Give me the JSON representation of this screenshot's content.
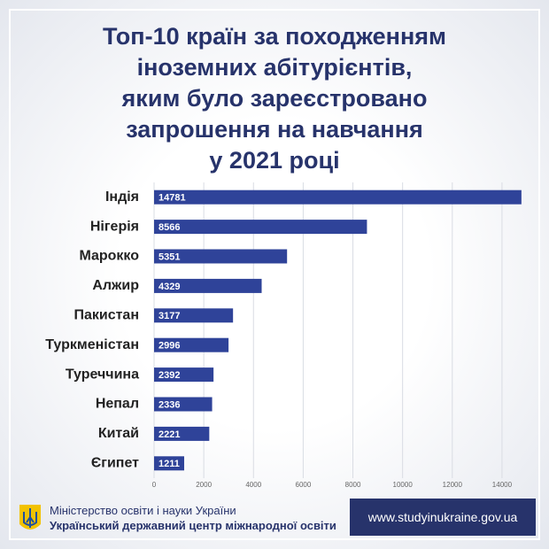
{
  "chart_data": {
    "type": "barh",
    "title": "Топ-10 країн за походженням\nіноземних абітурієнтів,\nяким було зареєстровано\nзапрошення на навчання\nу 2021 році",
    "categories": [
      "Індія",
      "Нігерія",
      "Марокко",
      "Алжир",
      "Пакистан",
      "Туркменістан",
      "Туреччина",
      "Непал",
      "Китай",
      "Єгипет"
    ],
    "values": [
      14781,
      8566,
      5351,
      4329,
      3177,
      2996,
      2392,
      2336,
      2221,
      1211
    ],
    "color": "#2f4399",
    "xlim": [
      0,
      15000
    ],
    "xticks": [
      0,
      2000,
      4000,
      6000,
      8000,
      10000,
      12000,
      14000
    ],
    "grid": true
  },
  "footer": {
    "ministry": "Міністерство освіти і науки України",
    "center": "Український державний центр міжнародної освіти",
    "url": "www.studyinukraine.gov.ua"
  }
}
